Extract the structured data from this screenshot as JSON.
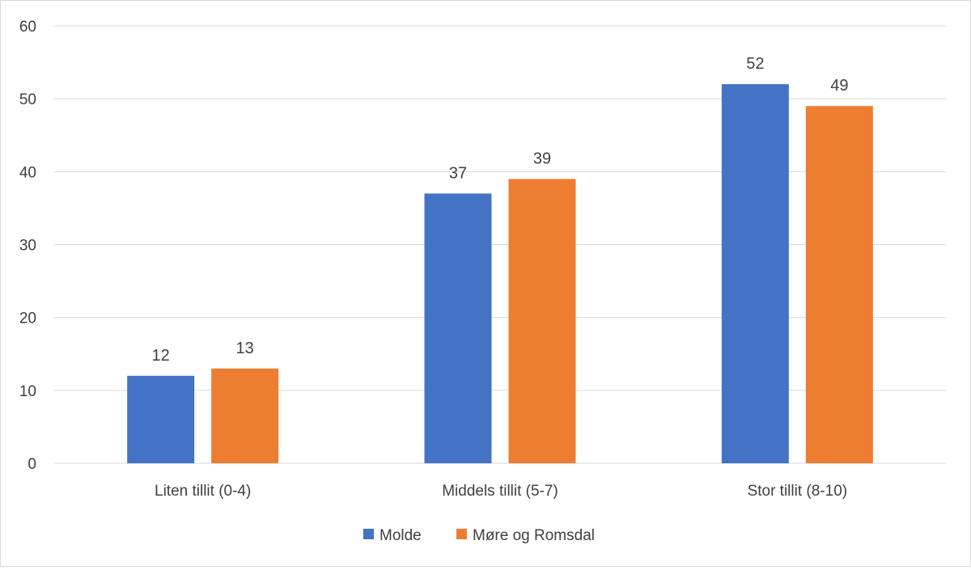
{
  "chart_data": {
    "type": "bar",
    "title": "",
    "xlabel": "",
    "ylabel": "",
    "categories": [
      "Liten tillit (0-4)",
      "Middels tillit (5-7)",
      "Stor tillit (8-10)"
    ],
    "series": [
      {
        "name": "Molde",
        "values": [
          12,
          37,
          52
        ],
        "color": "#4472c4"
      },
      {
        "name": "Møre og Romsdal",
        "values": [
          13,
          39,
          49
        ],
        "color": "#ed7d31"
      }
    ],
    "ylim": [
      0,
      60
    ],
    "yticks": [
      0,
      10,
      20,
      30,
      40,
      50,
      60
    ],
    "grid": true,
    "data_labels": true,
    "legend_position": "bottom"
  }
}
